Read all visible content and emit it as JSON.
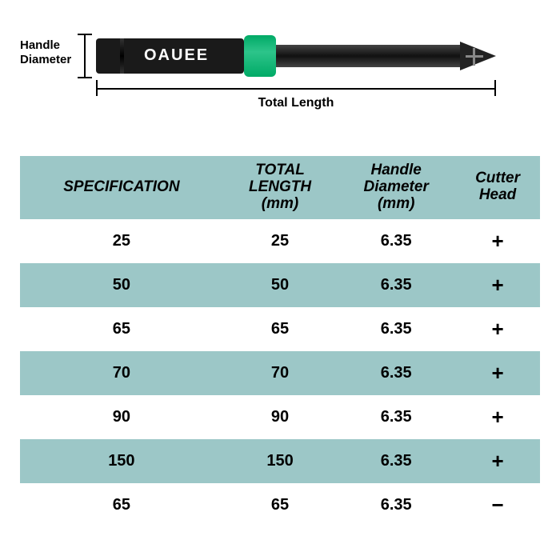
{
  "diagram": {
    "handle_label_l1": "Handle",
    "handle_label_l2": "Diameter",
    "brand": "OAUEE",
    "total_label": "Total Length"
  },
  "table": {
    "header_bg": "#9cc7c7",
    "alt_bg": "#9cc7c7",
    "columns": [
      {
        "l1": "SPECIFICATION",
        "l2": ""
      },
      {
        "l1": "TOTAL",
        "l2": "LENGTH",
        "l3": "(mm)"
      },
      {
        "l1": "Handle",
        "l2": "Diameter",
        "l3": "(mm)"
      },
      {
        "l1": "Cutter",
        "l2": "Head"
      }
    ],
    "rows": [
      {
        "spec": "25",
        "length": "25",
        "dia": "6.35",
        "head": "+",
        "teal": false
      },
      {
        "spec": "50",
        "length": "50",
        "dia": "6.35",
        "head": "+",
        "teal": true
      },
      {
        "spec": "65",
        "length": "65",
        "dia": "6.35",
        "head": "+",
        "teal": false
      },
      {
        "spec": "70",
        "length": "70",
        "dia": "6.35",
        "head": "+",
        "teal": true
      },
      {
        "spec": "90",
        "length": "90",
        "dia": "6.35",
        "head": "+",
        "teal": false
      },
      {
        "spec": "150",
        "length": "150",
        "dia": "6.35",
        "head": "+",
        "teal": true
      },
      {
        "spec": "65",
        "length": "65",
        "dia": "6.35",
        "head": "−",
        "teal": false
      }
    ]
  }
}
